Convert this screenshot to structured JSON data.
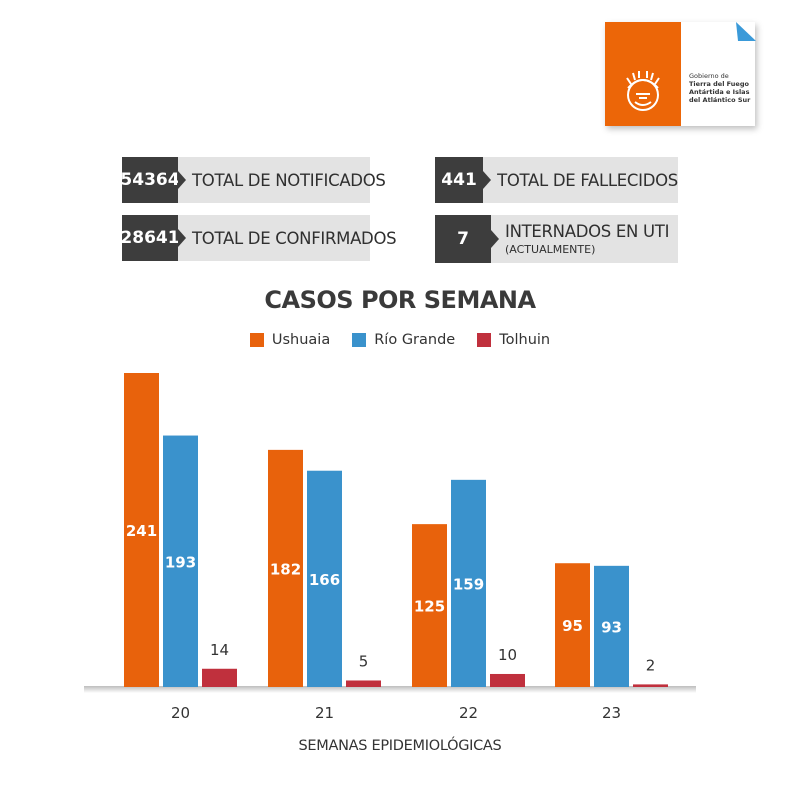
{
  "logo": {
    "lines": [
      "Gobierno de",
      "Tierra del Fuego",
      "Antártida e Islas",
      "del Atlántico Sur"
    ]
  },
  "stats": {
    "notificados": {
      "value": "54364",
      "label": "TOTAL DE NOTIFICADOS"
    },
    "fallecidos": {
      "value": "441",
      "label": "TOTAL DE FALLECIDOS"
    },
    "confirmados": {
      "value": "28641",
      "label": "TOTAL DE CONFIRMADOS"
    },
    "internados": {
      "value": "7",
      "label": "INTERNADOS EN UTI",
      "sublabel": "(ACTUALMENTE)"
    }
  },
  "colors": {
    "ushuaia": "#e8620c",
    "rio_grande": "#3a92cc",
    "tolhuin": "#c0303d",
    "dark": "#3d3d3d",
    "light": "#e3e3e3"
  },
  "chart_data": {
    "type": "bar",
    "title": "CASOS POR SEMANA",
    "xlabel": "SEMANAS EPIDEMIOLÓGICAS",
    "ylabel": "",
    "categories": [
      "20",
      "21",
      "22",
      "23"
    ],
    "series": [
      {
        "name": "Ushuaia",
        "values": [
          241,
          182,
          125,
          95
        ]
      },
      {
        "name": "Río Grande",
        "values": [
          193,
          166,
          159,
          93
        ]
      },
      {
        "name": "Tolhuin",
        "values": [
          14,
          5,
          10,
          2
        ]
      }
    ],
    "ylim": [
      0,
      241
    ],
    "grid": false,
    "legend": "top-center"
  }
}
